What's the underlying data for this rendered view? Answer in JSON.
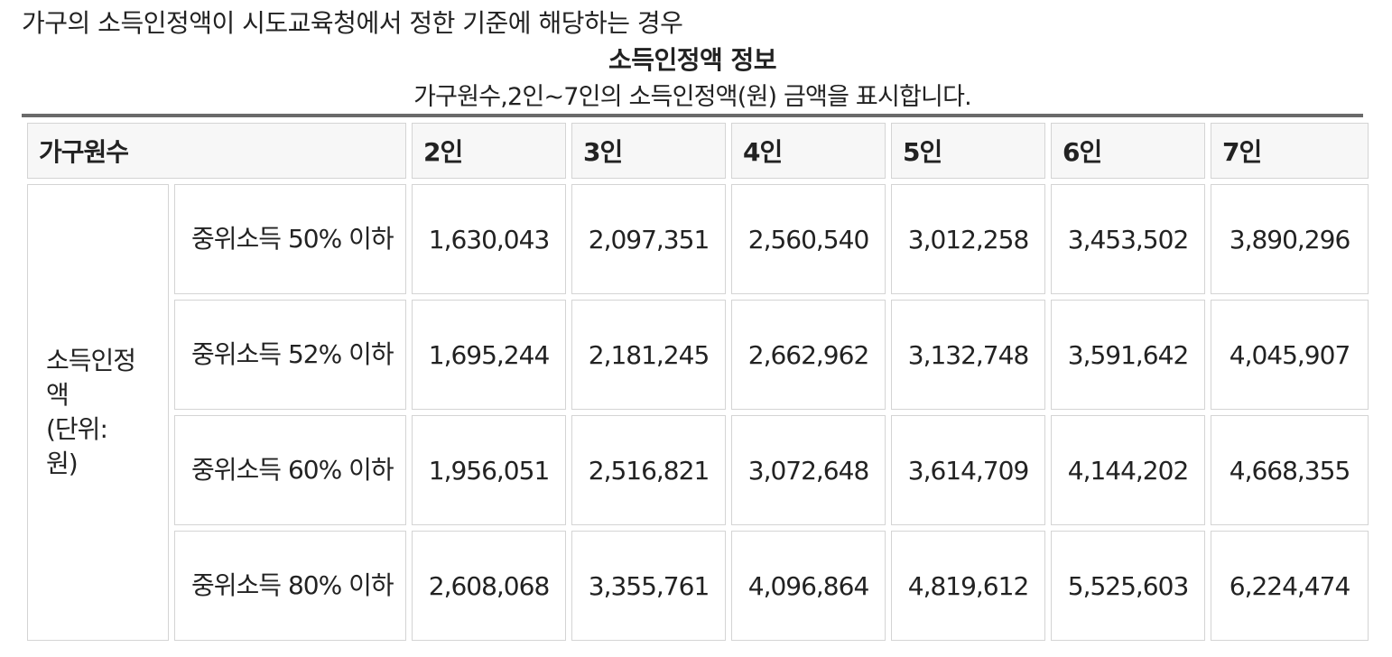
{
  "intro": "가구의 소득인정액이 시도교육청에서 정한 기준에 해당하는 경우",
  "caption": {
    "title": "소득인정액 정보",
    "description": "가구원수,2인~7인의 소득인정액(원) 금액을 표시합니다."
  },
  "table": {
    "header_label": "가구원수",
    "columns": [
      "2인",
      "3인",
      "4인",
      "5인",
      "6인",
      "7인"
    ],
    "group_label_lines": [
      "소득인정",
      "액",
      "(단위:",
      "원)"
    ],
    "rows": [
      {
        "label": "중위소득 50% 이하",
        "values": [
          "1,630,043",
          "2,097,351",
          "2,560,540",
          "3,012,258",
          "3,453,502",
          "3,890,296"
        ]
      },
      {
        "label": "중위소득 52% 이하",
        "values": [
          "1,695,244",
          "2,181,245",
          "2,662,962",
          "3,132,748",
          "3,591,642",
          "4,045,907"
        ]
      },
      {
        "label": "중위소득 60% 이하",
        "values": [
          "1,956,051",
          "2,516,821",
          "3,072,648",
          "3,614,709",
          "4,144,202",
          "4,668,355"
        ]
      },
      {
        "label": "중위소득 80% 이하",
        "values": [
          "2,608,068",
          "3,355,761",
          "4,096,864",
          "4,819,612",
          "5,525,603",
          "6,224,474"
        ]
      }
    ]
  }
}
